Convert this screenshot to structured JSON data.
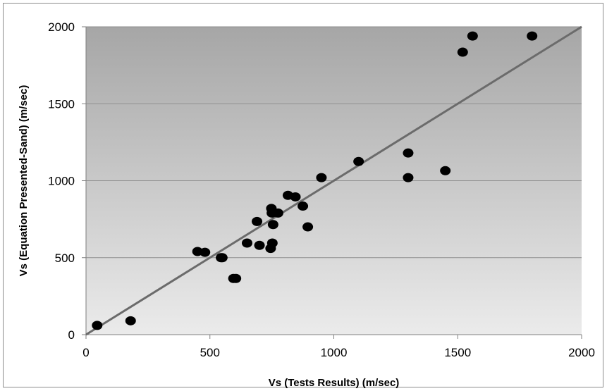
{
  "chart_data": {
    "type": "scatter",
    "title": "",
    "xlabel": "Vs (Tests Results) (m/sec)",
    "ylabel": "Vs (Equation Presented-Sand) (m/sec)",
    "xlim": [
      0,
      2000
    ],
    "ylim": [
      0,
      2000
    ],
    "x_ticks": [
      "0",
      "500",
      "1000",
      "1500",
      "2000"
    ],
    "y_ticks": [
      "0",
      "500",
      "1000",
      "1500",
      "2000"
    ],
    "grid": "horizontal",
    "legend": "none",
    "points": [
      {
        "x": 45,
        "y": 60
      },
      {
        "x": 180,
        "y": 90
      },
      {
        "x": 450,
        "y": 540
      },
      {
        "x": 480,
        "y": 535
      },
      {
        "x": 545,
        "y": 500
      },
      {
        "x": 550,
        "y": 500
      },
      {
        "x": 595,
        "y": 365
      },
      {
        "x": 605,
        "y": 365
      },
      {
        "x": 650,
        "y": 595
      },
      {
        "x": 690,
        "y": 735
      },
      {
        "x": 700,
        "y": 580
      },
      {
        "x": 745,
        "y": 560
      },
      {
        "x": 748,
        "y": 820
      },
      {
        "x": 750,
        "y": 790
      },
      {
        "x": 752,
        "y": 595
      },
      {
        "x": 755,
        "y": 715
      },
      {
        "x": 775,
        "y": 790
      },
      {
        "x": 815,
        "y": 905
      },
      {
        "x": 845,
        "y": 895
      },
      {
        "x": 875,
        "y": 835
      },
      {
        "x": 895,
        "y": 700
      },
      {
        "x": 950,
        "y": 1020
      },
      {
        "x": 1100,
        "y": 1125
      },
      {
        "x": 1300,
        "y": 1180
      },
      {
        "x": 1300,
        "y": 1020
      },
      {
        "x": 1450,
        "y": 1065
      },
      {
        "x": 1520,
        "y": 1835
      },
      {
        "x": 1560,
        "y": 1940
      },
      {
        "x": 1800,
        "y": 1940
      }
    ],
    "reference_line": {
      "type": "y=x",
      "from": 0,
      "to": 2000
    },
    "colors": {
      "point": "#000000",
      "line": "#6b6b6b",
      "plot_bg_top": "#a6a6a6",
      "plot_bg_bottom": "#ebebeb",
      "gridline": "#8f8f8f"
    }
  }
}
